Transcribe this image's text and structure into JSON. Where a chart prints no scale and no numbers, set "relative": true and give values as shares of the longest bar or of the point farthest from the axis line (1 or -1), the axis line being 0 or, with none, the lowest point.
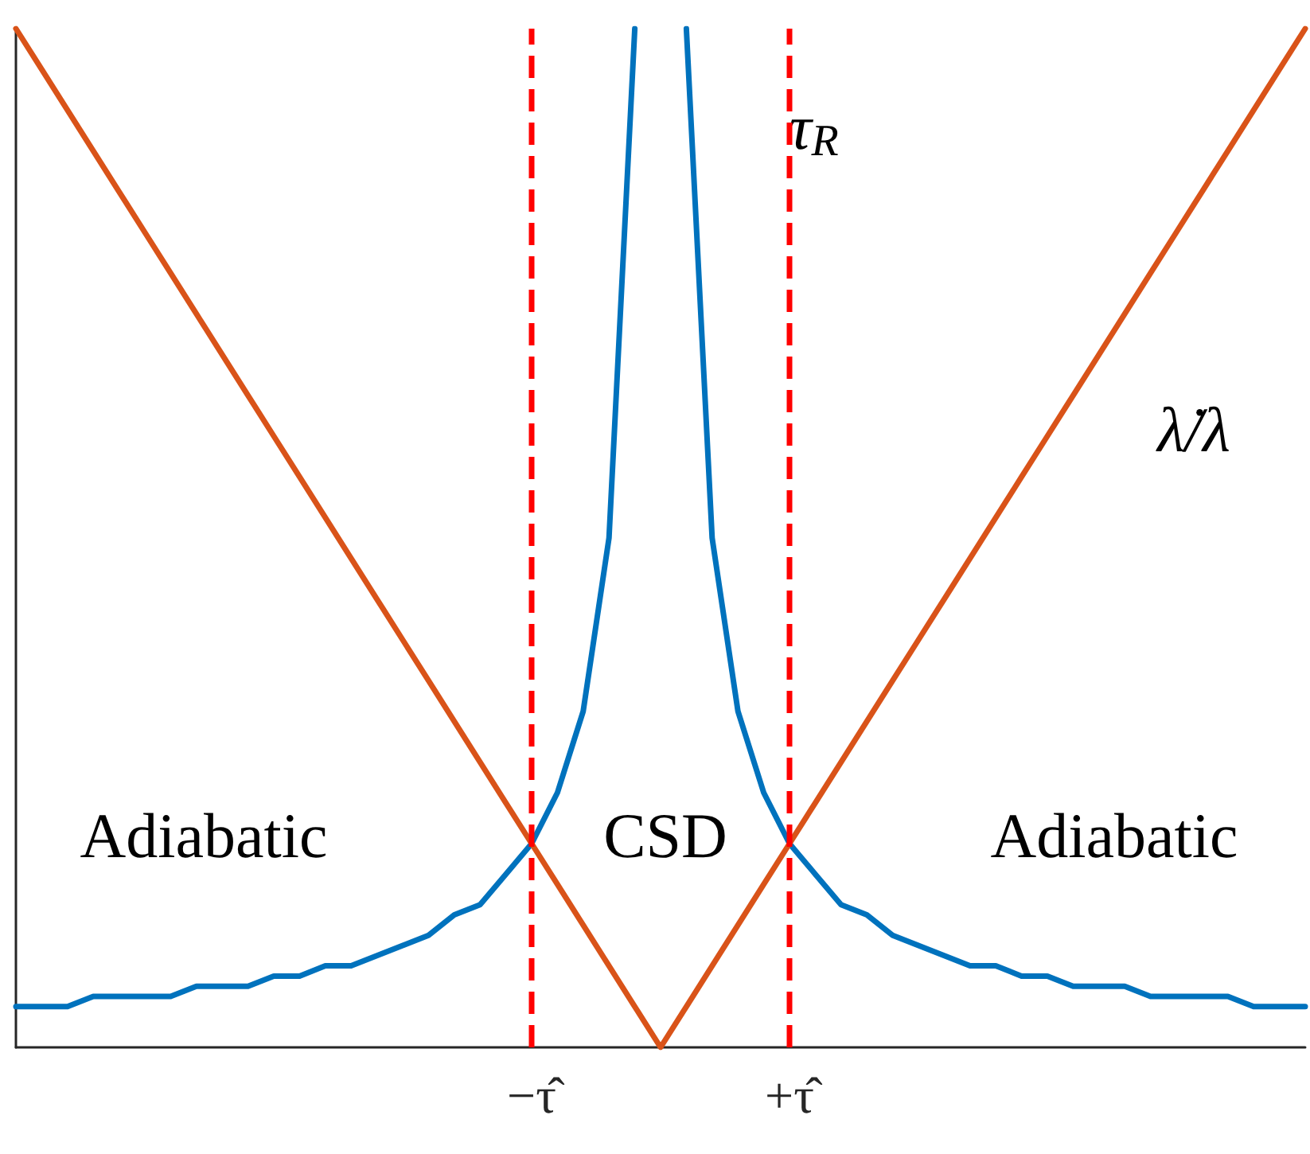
{
  "chart_data": {
    "type": "line",
    "relative": true,
    "categories": [
      null,
      null,
      null,
      null,
      null,
      null,
      null,
      null,
      null,
      null,
      null,
      null,
      null,
      null,
      null,
      null,
      null,
      null,
      null,
      null,
      "−τ̂",
      null,
      null,
      null,
      null,
      null,
      null,
      null,
      null,
      null,
      "+τ̂",
      null,
      null,
      null,
      null,
      null,
      null,
      null,
      null,
      null,
      null,
      null,
      null,
      null,
      null,
      null,
      null,
      null,
      null,
      null,
      null
    ],
    "tick_labels": "x",
    "grid": false,
    "legend": false,
    "marker": "none",
    "line_style": "solid",
    "series": [
      {
        "name": "τ$_{R}$",
        "color": "#0072bd",
        "values": [
          0.04,
          0.04,
          0.04,
          0.05,
          0.05,
          0.05,
          0.05,
          0.06,
          0.06,
          0.06,
          0.07,
          0.07,
          0.08,
          0.08,
          0.09,
          0.1,
          0.11,
          0.13,
          0.14,
          0.17,
          0.2,
          0.25,
          0.33,
          0.5,
          1,
          null,
          1,
          0.5,
          0.33,
          0.25,
          0.2,
          0.17,
          0.14,
          0.13,
          0.11,
          0.1,
          0.09,
          0.08,
          0.08,
          0.07,
          0.07,
          0.06,
          0.06,
          0.06,
          0.05,
          0.05,
          0.05,
          0.05,
          0.04,
          0.04,
          0.04
        ]
      },
      {
        "name": "λ̇/λ",
        "color": "#d95319",
        "values": [
          1,
          0.96,
          0.92,
          0.88,
          0.84,
          0.8,
          0.76,
          0.72,
          0.68,
          0.64,
          0.6,
          0.56,
          0.52,
          0.48,
          0.44,
          0.4,
          0.36,
          0.32,
          0.28,
          0.24,
          0.2,
          0.16,
          0.12,
          0.08,
          0.04,
          0,
          0.04,
          0.08,
          0.12,
          0.16,
          0.2,
          0.24,
          0.28,
          0.32,
          0.36,
          0.4,
          0.44,
          0.48,
          0.52,
          0.56,
          0.6,
          0.64,
          0.68,
          0.72,
          0.76,
          0.8,
          0.84,
          0.88,
          0.92,
          0.96,
          1
        ]
      }
    ],
    "ref_lines": [
      {
        "axis": "x",
        "value": "−τ̂",
        "label": null,
        "color": "#ff0000",
        "line_style": "dashed"
      },
      {
        "axis": "x",
        "value": "+τ̂",
        "label": null,
        "color": "#ff0000",
        "line_style": "dashed"
      }
    ],
    "annotations": [
      "Adiabatic",
      "CSD",
      "Adiabatic"
    ]
  }
}
